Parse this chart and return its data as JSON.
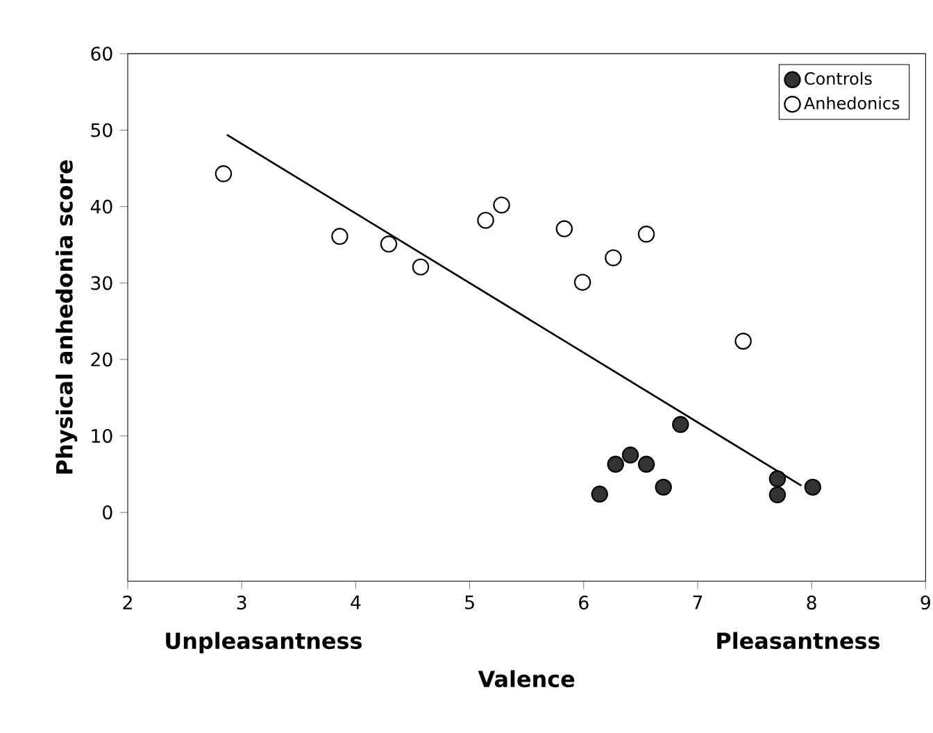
{
  "chart_data": {
    "type": "scatter",
    "xlabel": "Valence",
    "ylabel": "Physical anhedonia score",
    "annotations": [
      "Unpleasantness",
      "Pleasantness"
    ],
    "xlim": [
      2,
      9
    ],
    "ylim": [
      -9,
      60
    ],
    "xticks": [
      2,
      3,
      4,
      5,
      6,
      7,
      8,
      9
    ],
    "yticks": [
      0,
      10,
      20,
      30,
      40,
      50,
      60
    ],
    "grid": false,
    "legend": "top right",
    "marker": "circle",
    "series": [
      {
        "name": "Controls",
        "color": "#333333",
        "x": [
          6.14,
          6.28,
          6.41,
          6.55,
          6.7,
          6.85,
          7.7,
          7.7,
          8.01
        ],
        "values": [
          2.4,
          6.3,
          7.5,
          6.3,
          3.3,
          11.5,
          4.4,
          2.3,
          3.3
        ]
      },
      {
        "name": "Anhedonics",
        "color": "#ffffff",
        "x": [
          2.84,
          3.86,
          4.29,
          4.57,
          5.14,
          5.28,
          5.83,
          5.99,
          6.26,
          6.55,
          7.4
        ],
        "values": [
          44.3,
          36.1,
          35.1,
          32.1,
          38.2,
          40.2,
          37.1,
          30.1,
          33.3,
          36.4,
          22.4
        ]
      },
      {
        "type": "line",
        "color": "#000000",
        "marker": "none",
        "line_style": "solid",
        "x": [
          2.87,
          7.91
        ],
        "values": [
          49.4,
          3.5
        ]
      }
    ]
  }
}
